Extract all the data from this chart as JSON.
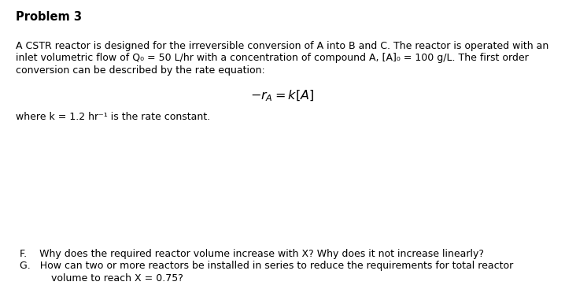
{
  "title": "Problem 3",
  "bg_color": "#ffffff",
  "paragraph_line1": "A CSTR reactor is designed for the irreversible conversion of A into B and C. The reactor is operated with an",
  "paragraph_line2": "inlet volumetric flow of Q₀ = 50 L/hr with a concentration of compound A, [A]₀ = 100 g/L. The first order",
  "paragraph_line3": "conversion can be described by the rate equation:",
  "equation": "$-r_A = k[A]$",
  "where_text": "where k = 1.2 hr⁻¹ is the rate constant.",
  "question_F": "F.    Why does the required reactor volume increase with X? Why does it not increase linearly?",
  "question_G_line1": "G.   How can two or more reactors be installed in series to reduce the requirements for total reactor",
  "question_G_line2": "          volume to reach X = 0.75?",
  "text_color": "#000000",
  "font_size_title": 10.5,
  "font_size_body": 9.0,
  "font_size_eq": 11.5
}
